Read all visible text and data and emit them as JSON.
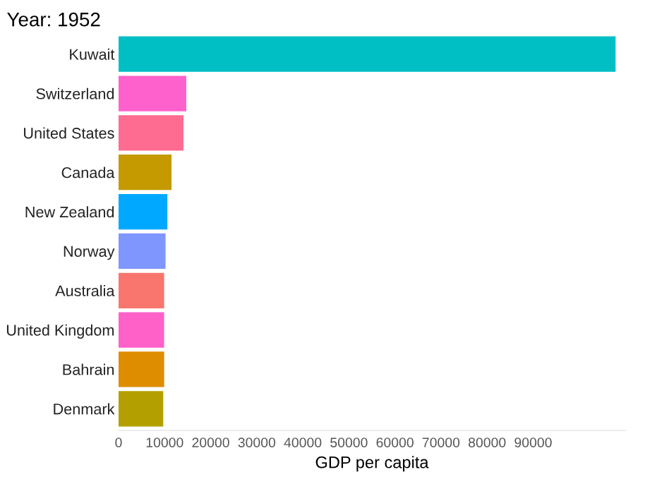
{
  "chart_data": {
    "type": "bar",
    "orientation": "horizontal",
    "title": "Year: 1952",
    "xlabel": "GDP per capita",
    "categories": [
      "Kuwait",
      "Switzerland",
      "United States",
      "Canada",
      "New Zealand",
      "Norway",
      "Australia",
      "United Kingdom",
      "Bahrain",
      "Denmark"
    ],
    "values": [
      107900,
      14700,
      14100,
      11500,
      10600,
      10200,
      9900,
      9900,
      9900,
      9700
    ],
    "colors": [
      "#00bfc4",
      "#ff61cc",
      "#ff6c91",
      "#c49a00",
      "#00a9ff",
      "#7f96ff",
      "#f8766d",
      "#ff61c9",
      "#de8c00",
      "#b3a000"
    ],
    "xlim": [
      0,
      110000
    ],
    "xticks": [
      0,
      10000,
      20000,
      30000,
      40000,
      50000,
      60000,
      70000,
      80000,
      90000
    ],
    "grid": false
  }
}
